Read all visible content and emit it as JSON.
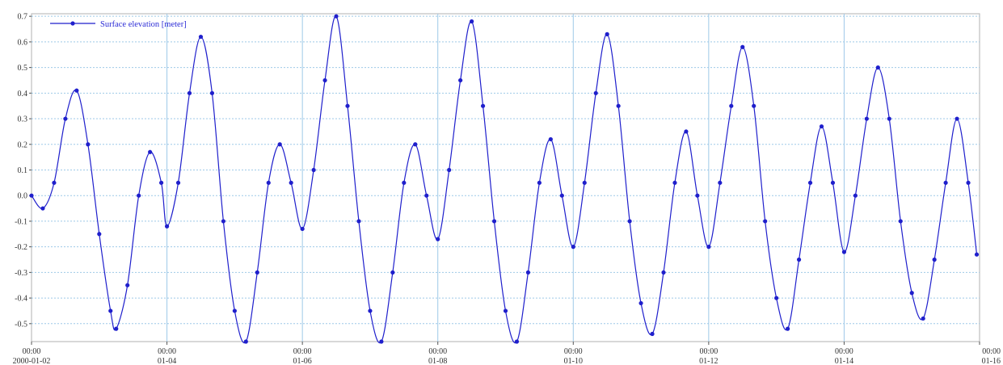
{
  "chart_data": {
    "type": "line",
    "x_start": "2000-01-02 00:00",
    "x_end": "2000-01-16 00:00",
    "x_range": [
      "2000-01-02 00:00",
      "2000-01-16 00:00"
    ],
    "ylim": [
      -0.57,
      0.71
    ],
    "grid": true,
    "legend_position": "top-left",
    "y_ticks": [
      0.7,
      0.6,
      0.5,
      0.4,
      0.3,
      0.2,
      0.1,
      0.0,
      -0.1,
      -0.2,
      -0.3,
      -0.4,
      -0.5
    ],
    "y_tick_labels": [
      "0.7",
      "0.6",
      "0.5",
      "0.4",
      "0.3",
      "0.2",
      "0.1",
      "0.0",
      "-0.1",
      "-0.2",
      "-0.3",
      "-0.4",
      "-0.5"
    ],
    "x_ticks": [
      {
        "x": "2000-01-02 00:00",
        "line1": "00:00",
        "line2": "2000-01-02"
      },
      {
        "x": "2000-01-04 00:00",
        "line1": "00:00",
        "line2": "01-04"
      },
      {
        "x": "2000-01-06 00:00",
        "line1": "00:00",
        "line2": "01-06"
      },
      {
        "x": "2000-01-08 00:00",
        "line1": "00:00",
        "line2": "01-08"
      },
      {
        "x": "2000-01-10 00:00",
        "line1": "00:00",
        "line2": "01-10"
      },
      {
        "x": "2000-01-12 00:00",
        "line1": "00:00",
        "line2": "01-12"
      },
      {
        "x": "2000-01-14 00:00",
        "line1": "00:00",
        "line2": "01-14"
      },
      {
        "x": "2000-01-16 00:00",
        "line1": "00:00",
        "line2": "01-16"
      }
    ],
    "series": [
      {
        "name": "Surface elevation [meter]",
        "color": "#1f1fcc",
        "marker": "circle",
        "points": [
          [
            "2000-01-02 00:00",
            0.0
          ],
          [
            "2000-01-02 04:00",
            -0.05
          ],
          [
            "2000-01-02 08:00",
            0.05
          ],
          [
            "2000-01-02 12:00",
            0.3
          ],
          [
            "2000-01-02 16:00",
            0.41
          ],
          [
            "2000-01-02 20:00",
            0.2
          ],
          [
            "2000-01-03 00:00",
            -0.15
          ],
          [
            "2000-01-03 04:00",
            -0.45
          ],
          [
            "2000-01-03 06:00",
            -0.52
          ],
          [
            "2000-01-03 10:00",
            -0.35
          ],
          [
            "2000-01-03 14:00",
            0.0
          ],
          [
            "2000-01-03 18:00",
            0.17
          ],
          [
            "2000-01-03 22:00",
            0.05
          ],
          [
            "2000-01-04 00:00",
            -0.12
          ],
          [
            "2000-01-04 04:00",
            0.05
          ],
          [
            "2000-01-04 08:00",
            0.4
          ],
          [
            "2000-01-04 12:00",
            0.62
          ],
          [
            "2000-01-04 16:00",
            0.4
          ],
          [
            "2000-01-04 20:00",
            -0.1
          ],
          [
            "2000-01-05 00:00",
            -0.45
          ],
          [
            "2000-01-05 04:00",
            -0.57
          ],
          [
            "2000-01-05 08:00",
            -0.3
          ],
          [
            "2000-01-05 12:00",
            0.05
          ],
          [
            "2000-01-05 16:00",
            0.2
          ],
          [
            "2000-01-05 20:00",
            0.05
          ],
          [
            "2000-01-06 00:00",
            -0.13
          ],
          [
            "2000-01-06 04:00",
            0.1
          ],
          [
            "2000-01-06 08:00",
            0.45
          ],
          [
            "2000-01-06 12:00",
            0.7
          ],
          [
            "2000-01-06 16:00",
            0.35
          ],
          [
            "2000-01-06 20:00",
            -0.1
          ],
          [
            "2000-01-07 00:00",
            -0.45
          ],
          [
            "2000-01-07 04:00",
            -0.57
          ],
          [
            "2000-01-07 08:00",
            -0.3
          ],
          [
            "2000-01-07 12:00",
            0.05
          ],
          [
            "2000-01-07 16:00",
            0.2
          ],
          [
            "2000-01-07 20:00",
            0.0
          ],
          [
            "2000-01-08 00:00",
            -0.17
          ],
          [
            "2000-01-08 04:00",
            0.1
          ],
          [
            "2000-01-08 08:00",
            0.45
          ],
          [
            "2000-01-08 12:00",
            0.68
          ],
          [
            "2000-01-08 16:00",
            0.35
          ],
          [
            "2000-01-08 20:00",
            -0.1
          ],
          [
            "2000-01-09 00:00",
            -0.45
          ],
          [
            "2000-01-09 04:00",
            -0.57
          ],
          [
            "2000-01-09 08:00",
            -0.3
          ],
          [
            "2000-01-09 12:00",
            0.05
          ],
          [
            "2000-01-09 16:00",
            0.22
          ],
          [
            "2000-01-09 20:00",
            0.0
          ],
          [
            "2000-01-10 00:00",
            -0.2
          ],
          [
            "2000-01-10 04:00",
            0.05
          ],
          [
            "2000-01-10 08:00",
            0.4
          ],
          [
            "2000-01-10 12:00",
            0.63
          ],
          [
            "2000-01-10 16:00",
            0.35
          ],
          [
            "2000-01-10 20:00",
            -0.1
          ],
          [
            "2000-01-11 00:00",
            -0.42
          ],
          [
            "2000-01-11 04:00",
            -0.54
          ],
          [
            "2000-01-11 08:00",
            -0.3
          ],
          [
            "2000-01-11 12:00",
            0.05
          ],
          [
            "2000-01-11 16:00",
            0.25
          ],
          [
            "2000-01-11 20:00",
            0.0
          ],
          [
            "2000-01-12 00:00",
            -0.2
          ],
          [
            "2000-01-12 04:00",
            0.05
          ],
          [
            "2000-01-12 08:00",
            0.35
          ],
          [
            "2000-01-12 12:00",
            0.58
          ],
          [
            "2000-01-12 16:00",
            0.35
          ],
          [
            "2000-01-12 20:00",
            -0.1
          ],
          [
            "2000-01-13 00:00",
            -0.4
          ],
          [
            "2000-01-13 04:00",
            -0.52
          ],
          [
            "2000-01-13 08:00",
            -0.25
          ],
          [
            "2000-01-13 12:00",
            0.05
          ],
          [
            "2000-01-13 16:00",
            0.27
          ],
          [
            "2000-01-13 20:00",
            0.05
          ],
          [
            "2000-01-14 00:00",
            -0.22
          ],
          [
            "2000-01-14 04:00",
            0.0
          ],
          [
            "2000-01-14 08:00",
            0.3
          ],
          [
            "2000-01-14 12:00",
            0.5
          ],
          [
            "2000-01-14 16:00",
            0.3
          ],
          [
            "2000-01-14 20:00",
            -0.1
          ],
          [
            "2000-01-15 00:00",
            -0.38
          ],
          [
            "2000-01-15 04:00",
            -0.48
          ],
          [
            "2000-01-15 08:00",
            -0.25
          ],
          [
            "2000-01-15 12:00",
            0.05
          ],
          [
            "2000-01-15 16:00",
            0.3
          ],
          [
            "2000-01-15 20:00",
            0.05
          ],
          [
            "2000-01-15 23:00",
            -0.23
          ]
        ]
      }
    ]
  }
}
